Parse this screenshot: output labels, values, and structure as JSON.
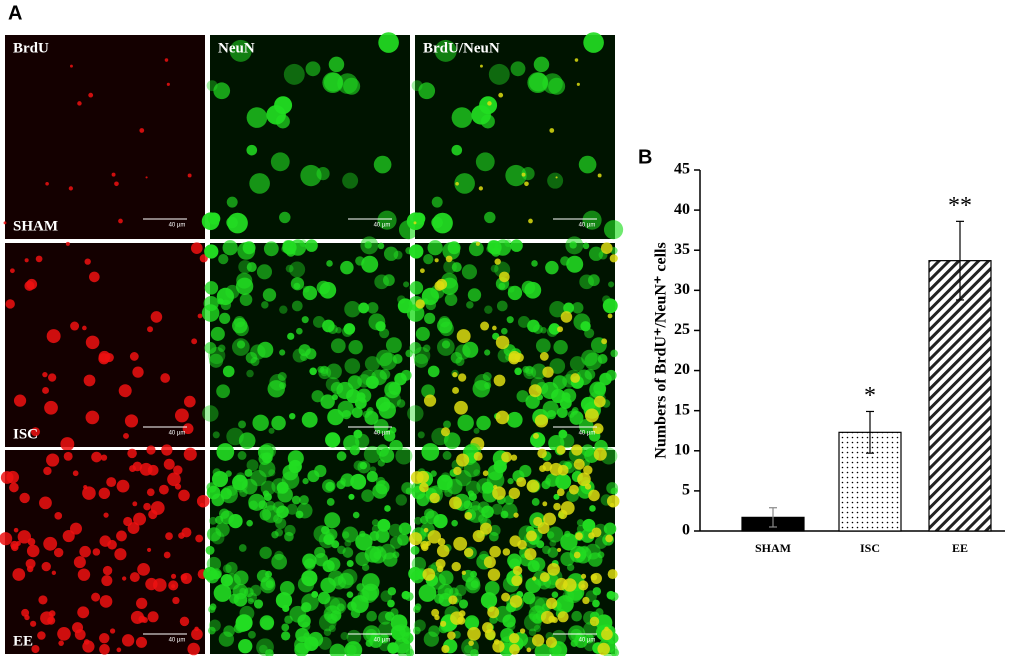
{
  "figure": {
    "panel_a_label": "A",
    "panel_b_label": "B",
    "column_labels": [
      "BrdU",
      "NeuN",
      "BrdU/NeuN"
    ],
    "row_labels": [
      "SHAM",
      "ISC",
      "EE"
    ],
    "scale_bar": "40 µm"
  },
  "chart_data": {
    "type": "bar",
    "y_label": "Numbers of BrdU⁺/NeuN⁺ cells",
    "categories": [
      "SHAM",
      "ISC",
      "EE"
    ],
    "values": [
      1.7,
      12.3,
      33.7
    ],
    "errors": [
      1.2,
      2.6,
      4.9
    ],
    "annotations": [
      null,
      "*",
      "**"
    ],
    "patterns": [
      "solid",
      "dots",
      "hatch"
    ],
    "color": "#000000",
    "ylim": [
      0,
      45
    ],
    "yticks": [
      0,
      5,
      10,
      15,
      20,
      25,
      30,
      35,
      40,
      45
    ]
  }
}
